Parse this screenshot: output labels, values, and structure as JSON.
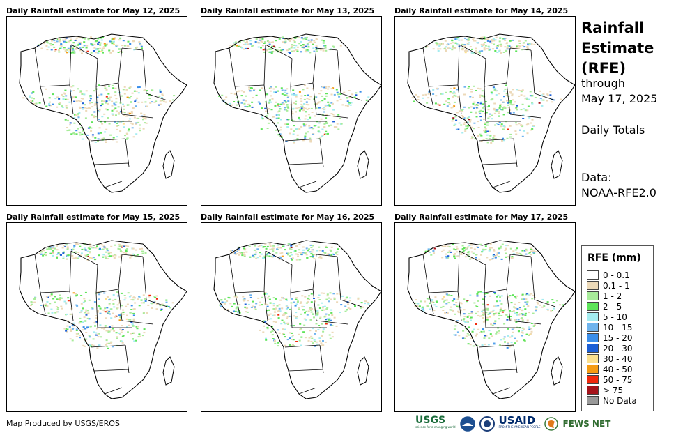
{
  "panels": [
    {
      "title": "Daily Rainfall estimate for May 12, 2025"
    },
    {
      "title": "Daily Rainfall estimate for May 13, 2025"
    },
    {
      "title": "Daily Rainfall estimate for May 14, 2025"
    },
    {
      "title": "Daily Rainfall estimate for May 15, 2025"
    },
    {
      "title": "Daily Rainfall estimate for May 16, 2025"
    },
    {
      "title": "Daily Rainfall estimate for May 17, 2025"
    }
  ],
  "side": {
    "title_line1": "Rainfall",
    "title_line2": "Estimate",
    "title_line3": "(RFE)",
    "through": "through",
    "date": "May 17, 2025",
    "totals": "Daily Totals",
    "data_label": "Data:",
    "data_source": "NOAA-RFE2.0"
  },
  "legend": {
    "title": "RFE (mm)",
    "items": [
      {
        "label": "0 - 0.1",
        "color": "#ffffff"
      },
      {
        "label": "0.1 - 1",
        "color": "#ecd9b8"
      },
      {
        "label": "1 - 2",
        "color": "#a8ec9a"
      },
      {
        "label": "2 - 5",
        "color": "#5ee45a"
      },
      {
        "label": "5 - 10",
        "color": "#a4ecf0"
      },
      {
        "label": "10 - 15",
        "color": "#6fb4ee"
      },
      {
        "label": "15 - 20",
        "color": "#3a8eea"
      },
      {
        "label": "20 - 30",
        "color": "#1c5fd6"
      },
      {
        "label": "30 - 40",
        "color": "#fbe08e"
      },
      {
        "label": "40 - 50",
        "color": "#f59b12"
      },
      {
        "label": "50 - 75",
        "color": "#f0280c"
      },
      {
        "label": "> 75",
        "color": "#a5131b"
      },
      {
        "label": "No Data",
        "color": "#999999"
      }
    ]
  },
  "footer": {
    "credit": "Map Produced by USGS/EROS",
    "logos": {
      "usgs": "USGS",
      "usgs_tagline": "science for a changing world",
      "usaid": "USAID",
      "usaid_tagline": "FROM THE AMERICAN PEOPLE",
      "fews": "FEWS NET"
    }
  }
}
